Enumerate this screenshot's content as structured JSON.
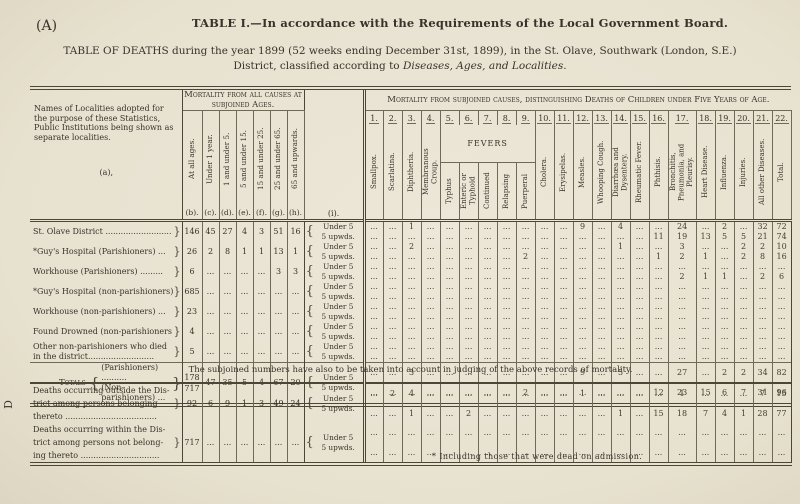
{
  "page": {
    "corner_label": "(A)",
    "title": "TABLE I.—In accordance with the Requirements of the Local Government Board.",
    "subtitle_line1": "TABLE OF DEATHS during the year 1899 (52 weeks ending December 31st, 1899), in the St. Olave, Southwark (London, S.E.)",
    "subtitle_line2_plain": "District, classified according to ",
    "subtitle_line2_italic": "Diseases, Ages, and Localities.",
    "margin_letter": "D",
    "middle_note": "The subjoined numbers have also to be taken into account in judging of the above records of mortality.",
    "footnote": "* Including those that were dead on admission."
  },
  "colors": {
    "paper": "#eae4d3",
    "ink": "#37332a",
    "rule": "#4b4636"
  },
  "table": {
    "names_header": "Names of Localities adopted for the purpose of these Statistics, Public Institutions being shown as separate localities.",
    "names_letter": "(a),",
    "ages_title": "Mortality from all causes at subjoined Ages.",
    "causes_title": "Mortality from subjoined causes, distinguishing Deaths of Children under Five Years of Age.",
    "i_letter": "(i).",
    "fevers_label": "FEVERS",
    "brace_open": "{",
    "brace_close": "}",
    "dots": "...",
    "under5_label": "Under 5",
    "upwds_label": "5 upwds.",
    "age_columns": [
      {
        "label": "At all ages.",
        "letter": "(b)."
      },
      {
        "label": "Under 1 year.",
        "letter": "(c)."
      },
      {
        "label": "1 and under 5.",
        "letter": "(d)."
      },
      {
        "label": "5 and under 15.",
        "letter": "(e)."
      },
      {
        "label": "15 and under 25.",
        "letter": "(f)."
      },
      {
        "label": "25 and under 65.",
        "letter": "(g)."
      },
      {
        "label": "65 and upwards.",
        "letter": "(h)."
      }
    ],
    "cause_columns": [
      {
        "num": "1.",
        "label": "Smallpox."
      },
      {
        "num": "2.",
        "label": "Scarlatina."
      },
      {
        "num": "3.",
        "label": "Diphtheria."
      },
      {
        "num": "4.",
        "label": "Membranous Croup."
      },
      {
        "num": "5.",
        "label": "Typhus"
      },
      {
        "num": "6.",
        "label": "Enteric or Typhoid"
      },
      {
        "num": "7.",
        "label": "Continued"
      },
      {
        "num": "8.",
        "label": "Relapsing"
      },
      {
        "num": "9.",
        "label": "Puerperal"
      },
      {
        "num": "10.",
        "label": "Cholera."
      },
      {
        "num": "11.",
        "label": "Erysipelas."
      },
      {
        "num": "12.",
        "label": "Measles."
      },
      {
        "num": "13.",
        "label": "Whooping Cough."
      },
      {
        "num": "14.",
        "label": "Diarrhœa and Dysentery."
      },
      {
        "num": "15.",
        "label": "Rheumatic Fever."
      },
      {
        "num": "16.",
        "label": "Phthisis."
      },
      {
        "num": "17.",
        "label": "Bronchitis, Pneumonia, and Pleurisy."
      },
      {
        "num": "18.",
        "label": "Heart Disease."
      },
      {
        "num": "19.",
        "label": "Influenza."
      },
      {
        "num": "20.",
        "label": "Injuries."
      },
      {
        "num": "21.",
        "label": "All other Diseases."
      },
      {
        "num": "22.",
        "label": "Total."
      }
    ],
    "fevers_span": [
      5,
      9
    ],
    "rows": [
      {
        "name": "St. Olave District ..........................",
        "ages": [
          "146",
          "45",
          "27",
          "4",
          "3",
          "51",
          "16"
        ],
        "under5": [
          "...",
          "...",
          "1",
          "...",
          "...",
          "...",
          "...",
          "...",
          "...",
          "...",
          "...",
          "9",
          "...",
          "4",
          "...",
          "...",
          "24",
          "...",
          "2",
          "...",
          "32",
          "72"
        ],
        "upwds": [
          "...",
          "...",
          "...",
          "...",
          "...",
          "...",
          "...",
          "...",
          "...",
          "...",
          "...",
          "...",
          "...",
          "...",
          "...",
          "11",
          "19",
          "13",
          "5",
          "5",
          "21",
          "74"
        ]
      },
      {
        "name": "*Guy's Hospital (Parishioners) ...",
        "ages": [
          "26",
          "2",
          "8",
          "1",
          "1",
          "13",
          "1"
        ],
        "under5": [
          "...",
          "...",
          "2",
          "...",
          "...",
          "...",
          "...",
          "...",
          "...",
          "...",
          "...",
          "...",
          "...",
          "1",
          "...",
          "...",
          "3",
          "...",
          "...",
          "2",
          "2",
          "10"
        ],
        "upwds": [
          "...",
          "...",
          "...",
          "...",
          "...",
          "...",
          "...",
          "...",
          "2",
          "...",
          "...",
          "...",
          "...",
          "...",
          "...",
          "1",
          "2",
          "1",
          "...",
          "2",
          "8",
          "16"
        ]
      },
      {
        "name": "Workhouse (Parishioners) .........",
        "ages": [
          "6",
          "...",
          "...",
          "...",
          "...",
          "3",
          "3"
        ],
        "under5": "ALL_DOTS",
        "upwds": [
          "...",
          "...",
          "...",
          "...",
          "...",
          "...",
          "...",
          "...",
          "...",
          "...",
          "...",
          "...",
          "...",
          "...",
          "...",
          "...",
          "2",
          "1",
          "1",
          "...",
          "2",
          "6"
        ]
      },
      {
        "name": "*Guy's Hospital (non-parishioners)",
        "ages": [
          "685",
          "...",
          "...",
          "...",
          "...",
          "...",
          "..."
        ],
        "under5": "ALL_DOTS",
        "upwds": "ALL_DOTS"
      },
      {
        "name": "Workhouse (non-parishioners)  ...",
        "ages": [
          "23",
          "...",
          "...",
          "...",
          "...",
          "...",
          "..."
        ],
        "under5": "ALL_DOTS",
        "upwds": "ALL_DOTS"
      },
      {
        "name": "Found Drowned (non-parishioners",
        "ages": [
          "4",
          "...",
          "...",
          "...",
          "...",
          "...",
          "..."
        ],
        "under5": "ALL_DOTS",
        "upwds": "ALL_DOTS"
      },
      {
        "name": "Other non-parishioners who died in the district..........................",
        "ages": [
          "5",
          "...",
          "...",
          "...",
          "...",
          "...",
          "..."
        ],
        "under5": "ALL_DOTS",
        "upwds": "ALL_DOTS"
      }
    ],
    "totals": {
      "label": "Totals",
      "line1": "(Parishioners) ..........",
      "line2": "(Non-parishioners) ...",
      "b_values": [
        "178",
        "717"
      ],
      "ages": [
        "47",
        "35",
        "5",
        "4",
        "67",
        "20"
      ],
      "under5": [
        "...",
        "...",
        "3",
        "...",
        "...",
        "...",
        "...",
        "...",
        "...",
        "...",
        "...",
        "9",
        "...",
        "5",
        "...",
        "...",
        "27",
        "...",
        "2",
        "2",
        "34",
        "82"
      ],
      "upwds": [
        "...",
        "...",
        "...",
        "...",
        "...",
        "...",
        "...",
        "...",
        "2",
        "...",
        "...",
        "...",
        "...",
        "...",
        "...",
        "12",
        "23",
        "15",
        "6",
        "7",
        "31",
        "96"
      ]
    }
  },
  "bottom_table": {
    "rows": [
      {
        "name_lines": [
          "Deaths occurring outside the Dis-",
          "trict among persons belonging",
          "thereto ...................................."
        ],
        "ages": [
          "92",
          "6",
          "9",
          "1",
          "3",
          "49",
          "24"
        ],
        "under5": [
          "...",
          "2",
          "4",
          "...",
          "...",
          "...",
          "...",
          "...",
          "...",
          "...",
          "...",
          "1",
          "...",
          "...",
          "...",
          "...",
          "1",
          "...",
          "...",
          "...",
          "7",
          "15"
        ],
        "upwds": [
          "...",
          "...",
          "1",
          "...",
          "...",
          "2",
          "...",
          "...",
          "...",
          "...",
          "...",
          "...",
          "...",
          "1",
          "...",
          "15",
          "18",
          "7",
          "4",
          "1",
          "28",
          "77"
        ]
      },
      {
        "name_lines": [
          "Deaths occurring within the Dis-",
          "trict among persons not belong-",
          "ing thereto ..............................."
        ],
        "ages": [
          "717",
          "...",
          "...",
          "...",
          "...",
          "...",
          "..."
        ],
        "under5": "ALL_DOTS",
        "upwds": "ALL_DOTS"
      }
    ]
  }
}
